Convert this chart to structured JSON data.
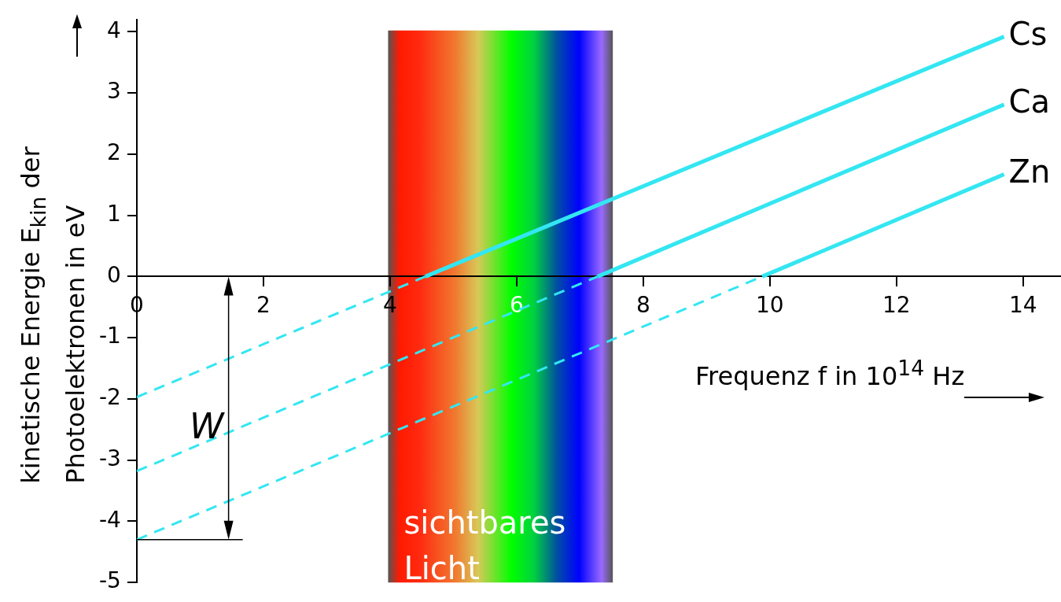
{
  "chart_data": {
    "type": "line",
    "xlabel": "Frequenz f in 10$^{14}$ Hz",
    "ylabel": "kinetische Energie E$_{kin}$ der Photoelektronen in eV",
    "xlim": [
      0,
      14.6
    ],
    "ylim": [
      -5,
      4.2
    ],
    "xticks": [
      0,
      2,
      4,
      6,
      8,
      10,
      12,
      14
    ],
    "yticks": [
      -5,
      -4,
      -3,
      -2,
      -1,
      0,
      1,
      2,
      3,
      4
    ],
    "bands": [
      {
        "axis": "x",
        "from": 3.97,
        "to": 7.52,
        "label": "sichtbares Licht"
      }
    ],
    "annotations": [
      {
        "text": "W",
        "x": 1.45,
        "y": -2.5
      }
    ],
    "ref_lines": [
      {
        "axis": "y",
        "value": -4.3
      }
    ],
    "series": [
      {
        "color": "#33e6f2",
        "line_style": "dashed",
        "x": [
          0,
          4.56
        ],
        "values": [
          -1.97,
          0
        ]
      },
      {
        "name": "Cs",
        "color": "#33e6f2",
        "line_style": "solid",
        "x": [
          4.56,
          13.7
        ],
        "values": [
          0,
          3.92
        ]
      },
      {
        "color": "#33e6f2",
        "line_style": "dashed",
        "x": [
          0,
          7.28
        ],
        "values": [
          -3.18,
          0
        ]
      },
      {
        "name": "Ca",
        "color": "#33e6f2",
        "line_style": "solid",
        "x": [
          7.28,
          13.7
        ],
        "values": [
          0,
          2.81
        ]
      },
      {
        "color": "#33e6f2",
        "line_style": "dashed",
        "x": [
          0,
          9.88
        ],
        "values": [
          -4.3,
          0
        ]
      },
      {
        "name": "Zn",
        "color": "#33e6f2",
        "line_style": "solid",
        "x": [
          9.88,
          13.7
        ],
        "values": [
          0,
          1.67
        ]
      }
    ]
  }
}
